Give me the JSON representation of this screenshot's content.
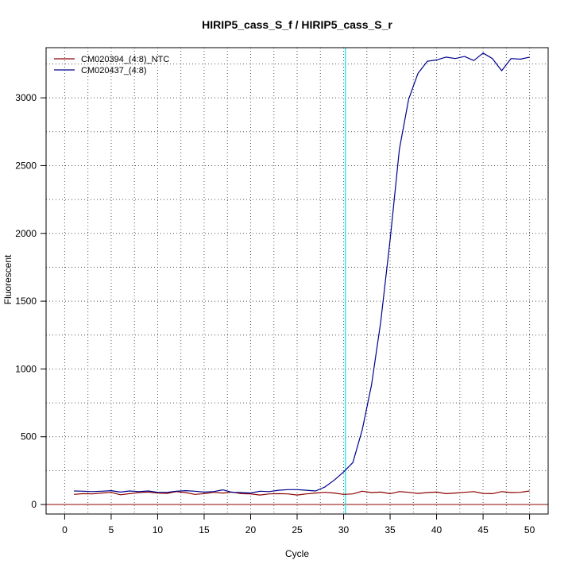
{
  "chart_data": {
    "type": "line",
    "title": "HIRIP5_cass_S_f / HIRIP5_cass_S_r",
    "xlabel": "Cycle",
    "ylabel": "Fluorescent",
    "xlim": [
      -2,
      52
    ],
    "ylim": [
      -70,
      3370
    ],
    "xticks": [
      0,
      5,
      10,
      15,
      20,
      25,
      30,
      35,
      40,
      45,
      50
    ],
    "yticks": [
      0,
      500,
      1000,
      1500,
      2000,
      2500,
      3000
    ],
    "grid": true,
    "legend_position": "top-left",
    "threshold_line": {
      "y": 0,
      "color": "#8b0000"
    },
    "cycle_marker": {
      "x": 30.2,
      "color": "#00e5ee"
    },
    "series": [
      {
        "name": "CM020394_(4:8)_NTC",
        "color": "#8b0000",
        "x": [
          1,
          2,
          3,
          4,
          5,
          6,
          7,
          8,
          9,
          10,
          11,
          12,
          13,
          14,
          15,
          16,
          17,
          18,
          19,
          20,
          21,
          22,
          23,
          24,
          25,
          26,
          27,
          28,
          29,
          30,
          31,
          32,
          33,
          34,
          35,
          36,
          37,
          38,
          39,
          40,
          41,
          42,
          43,
          44,
          45,
          46,
          47,
          48,
          49,
          50
        ],
        "values": [
          75,
          80,
          78,
          85,
          90,
          72,
          80,
          88,
          92,
          84,
          82,
          95,
          88,
          75,
          80,
          90,
          85,
          92,
          80,
          78,
          70,
          78,
          80,
          78,
          70,
          78,
          85,
          90,
          85,
          75,
          78,
          98,
          88,
          92,
          80,
          95,
          90,
          82,
          88,
          92,
          80,
          85,
          90,
          95,
          82,
          80,
          95,
          88,
          90,
          100
        ]
      },
      {
        "name": "CM020437_(4:8)",
        "color": "#00008b",
        "x": [
          1,
          2,
          3,
          4,
          5,
          6,
          7,
          8,
          9,
          10,
          11,
          12,
          13,
          14,
          15,
          16,
          17,
          18,
          19,
          20,
          21,
          22,
          23,
          24,
          25,
          26,
          27,
          28,
          29,
          30,
          31,
          32,
          33,
          34,
          35,
          36,
          37,
          38,
          39,
          40,
          41,
          42,
          43,
          44,
          45,
          46,
          47,
          48,
          49,
          50
        ],
        "values": [
          100,
          98,
          95,
          98,
          102,
          92,
          100,
          95,
          100,
          90,
          90,
          98,
          102,
          98,
          92,
          95,
          108,
          90,
          88,
          85,
          98,
          95,
          105,
          110,
          110,
          105,
          100,
          130,
          180,
          240,
          310,
          550,
          880,
          1350,
          1950,
          2620,
          2990,
          3180,
          3270,
          3280,
          3300,
          3290,
          3305,
          3275,
          3330,
          3290,
          3200,
          3290,
          3285,
          3300
        ]
      }
    ]
  }
}
